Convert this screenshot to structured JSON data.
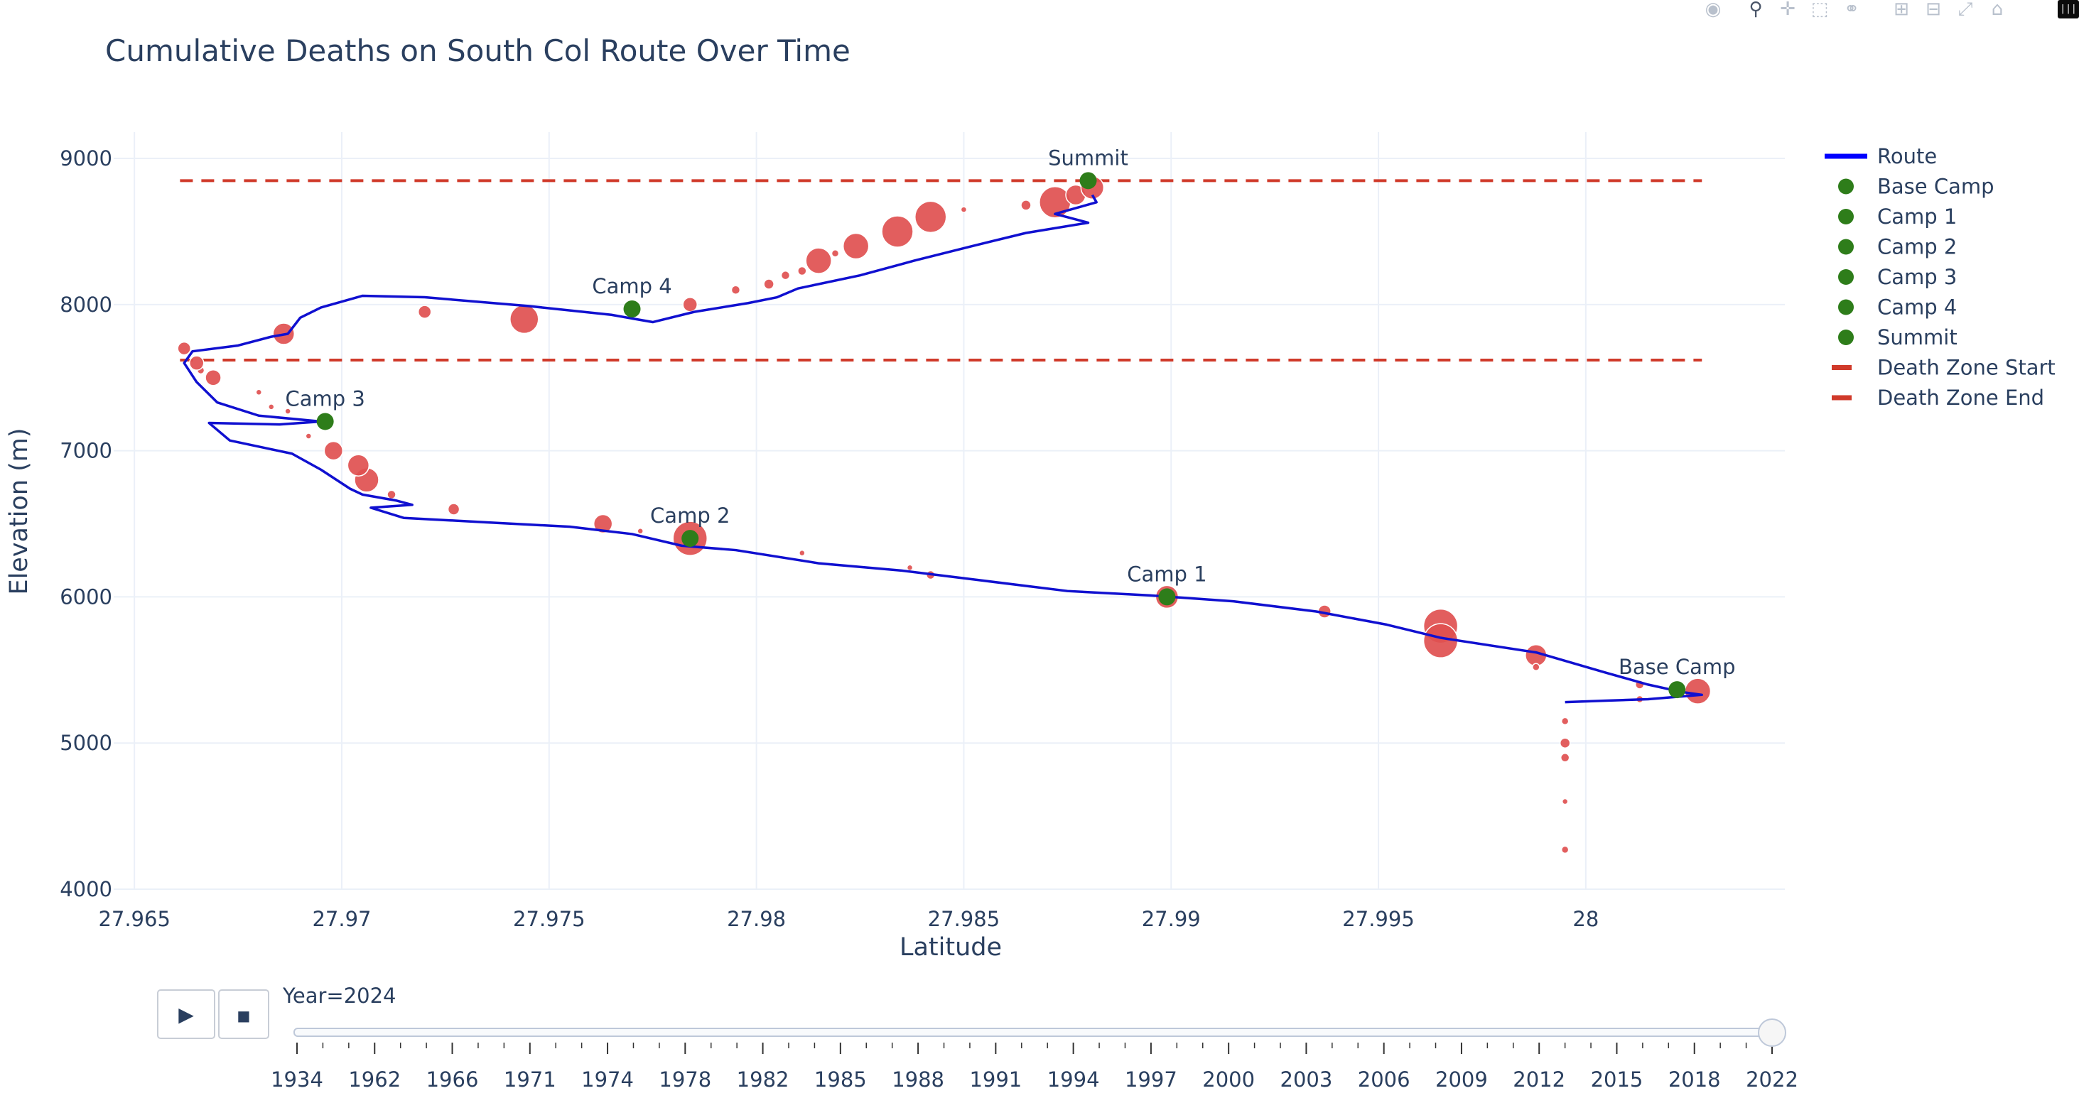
{
  "toolbar": {
    "icons": [
      "camera-icon",
      "zoom-icon",
      "pan-icon",
      "box-select-icon",
      "lasso-icon",
      "zoom-in-icon",
      "zoom-out-icon",
      "autoscale-icon",
      "reset-axes-icon",
      "plotly-logo-icon"
    ]
  },
  "chart_data": {
    "type": "scatter",
    "title": "Cumulative Deaths on South Col Route Over Time",
    "xlabel": "Latitude",
    "ylabel": "Elevation (m)",
    "xlim": [
      27.9645,
      28.0048
    ],
    "ylim": [
      4000,
      9180
    ],
    "xticks": [
      {
        "v": 27.965,
        "t": "27.965"
      },
      {
        "v": 27.97,
        "t": "27.97"
      },
      {
        "v": 27.975,
        "t": "27.975"
      },
      {
        "v": 27.98,
        "t": "27.98"
      },
      {
        "v": 27.985,
        "t": "27.985"
      },
      {
        "v": 27.99,
        "t": "27.99"
      },
      {
        "v": 27.995,
        "t": "27.995"
      },
      {
        "v": 28.0,
        "t": "28"
      }
    ],
    "yticks": [
      {
        "v": 4000,
        "t": "4000"
      },
      {
        "v": 5000,
        "t": "5000"
      },
      {
        "v": 6000,
        "t": "6000"
      },
      {
        "v": 7000,
        "t": "7000"
      },
      {
        "v": 8000,
        "t": "8000"
      },
      {
        "v": 9000,
        "t": "9000"
      }
    ],
    "grid": true,
    "legend_position": "right",
    "colors": {
      "route": "#1010d0",
      "camp": "#2e7d1a",
      "death": "#e05050",
      "zone": "#d03a2a"
    },
    "legend": [
      {
        "name": "Route",
        "kind": "line"
      },
      {
        "name": "Base Camp",
        "kind": "dot"
      },
      {
        "name": "Camp 1",
        "kind": "dot"
      },
      {
        "name": "Camp 2",
        "kind": "dot"
      },
      {
        "name": "Camp 3",
        "kind": "dot"
      },
      {
        "name": "Camp 4",
        "kind": "dot"
      },
      {
        "name": "Summit",
        "kind": "dot"
      },
      {
        "name": "Death Zone Start",
        "kind": "dash"
      },
      {
        "name": "Death Zone End",
        "kind": "dash"
      }
    ],
    "route": [
      [
        27.9995,
        5280
      ],
      [
        28.0005,
        5290
      ],
      [
        28.0015,
        5300
      ],
      [
        28.0028,
        5330
      ],
      [
        28.0023,
        5350
      ],
      [
        28.0015,
        5400
      ],
      [
        28.0005,
        5480
      ],
      [
        27.9988,
        5620
      ],
      [
        27.9965,
        5720
      ],
      [
        27.9952,
        5810
      ],
      [
        27.9935,
        5900
      ],
      [
        27.9915,
        5970
      ],
      [
        27.9895,
        6010
      ],
      [
        27.9875,
        6040
      ],
      [
        27.9855,
        6110
      ],
      [
        27.9835,
        6180
      ],
      [
        27.9815,
        6230
      ],
      [
        27.9795,
        6320
      ],
      [
        27.9782,
        6350
      ],
      [
        27.977,
        6430
      ],
      [
        27.9755,
        6480
      ],
      [
        27.9735,
        6510
      ],
      [
        27.9715,
        6540
      ],
      [
        27.9707,
        6610
      ],
      [
        27.9717,
        6630
      ],
      [
        27.9713,
        6660
      ],
      [
        27.9705,
        6700
      ],
      [
        27.9702,
        6740
      ],
      [
        27.9695,
        6870
      ],
      [
        27.9688,
        6980
      ],
      [
        27.9673,
        7070
      ],
      [
        27.9668,
        7190
      ],
      [
        27.9685,
        7180
      ],
      [
        27.9695,
        7200
      ],
      [
        27.968,
        7240
      ],
      [
        27.967,
        7330
      ],
      [
        27.9665,
        7470
      ],
      [
        27.9662,
        7600
      ],
      [
        27.9664,
        7680
      ],
      [
        27.9675,
        7720
      ],
      [
        27.9683,
        7780
      ],
      [
        27.9687,
        7800
      ],
      [
        27.969,
        7910
      ],
      [
        27.9695,
        7980
      ],
      [
        27.9705,
        8060
      ],
      [
        27.972,
        8050
      ],
      [
        27.9745,
        7990
      ],
      [
        27.9765,
        7930
      ],
      [
        27.9775,
        7880
      ],
      [
        27.9785,
        7950
      ],
      [
        27.9798,
        8010
      ],
      [
        27.9805,
        8050
      ],
      [
        27.981,
        8110
      ],
      [
        27.9825,
        8200
      ],
      [
        27.9838,
        8300
      ],
      [
        27.9852,
        8400
      ],
      [
        27.9865,
        8490
      ],
      [
        27.988,
        8560
      ],
      [
        27.9872,
        8620
      ],
      [
        27.9882,
        8700
      ],
      [
        27.9881,
        8750
      ]
    ],
    "camps": [
      {
        "name": "Base Camp",
        "x": 28.0022,
        "y": 5365
      },
      {
        "name": "Camp 1",
        "x": 27.9899,
        "y": 6000
      },
      {
        "name": "Camp 2",
        "x": 27.9784,
        "y": 6400
      },
      {
        "name": "Camp 3",
        "x": 27.9696,
        "y": 7200
      },
      {
        "name": "Camp 4",
        "x": 27.977,
        "y": 7970
      },
      {
        "name": "Summit",
        "x": 27.988,
        "y": 8848
      }
    ],
    "death_zone": [
      {
        "name": "Death Zone Start",
        "y": 7620
      },
      {
        "name": "Death Zone End",
        "y": 8848
      }
    ],
    "zone_x": [
      27.9661,
      28.0028
    ],
    "deaths": [
      {
        "x": 28.0027,
        "y": 5355,
        "r": 18
      },
      {
        "x": 27.9988,
        "y": 5600,
        "r": 15
      },
      {
        "x": 27.9988,
        "y": 5520,
        "r": 5
      },
      {
        "x": 27.9965,
        "y": 5800,
        "r": 24
      },
      {
        "x": 27.9965,
        "y": 5700,
        "r": 24
      },
      {
        "x": 27.9937,
        "y": 5900,
        "r": 9
      },
      {
        "x": 27.9899,
        "y": 6000,
        "r": 16
      },
      {
        "x": 27.9842,
        "y": 6150,
        "r": 6
      },
      {
        "x": 27.9837,
        "y": 6200,
        "r": 4
      },
      {
        "x": 27.9811,
        "y": 6300,
        "r": 4
      },
      {
        "x": 27.9784,
        "y": 6400,
        "r": 24
      },
      {
        "x": 27.9772,
        "y": 6450,
        "r": 4
      },
      {
        "x": 27.9763,
        "y": 6500,
        "r": 13
      },
      {
        "x": 27.9727,
        "y": 6600,
        "r": 8
      },
      {
        "x": 27.9712,
        "y": 6700,
        "r": 6
      },
      {
        "x": 27.9706,
        "y": 6800,
        "r": 17
      },
      {
        "x": 27.9704,
        "y": 6900,
        "r": 15
      },
      {
        "x": 27.9698,
        "y": 7000,
        "r": 13
      },
      {
        "x": 27.9692,
        "y": 7100,
        "r": 4
      },
      {
        "x": 27.9687,
        "y": 7270,
        "r": 4
      },
      {
        "x": 27.9683,
        "y": 7300,
        "r": 4
      },
      {
        "x": 27.968,
        "y": 7400,
        "r": 4
      },
      {
        "x": 27.9669,
        "y": 7500,
        "r": 11
      },
      {
        "x": 27.9666,
        "y": 7550,
        "r": 5
      },
      {
        "x": 27.9665,
        "y": 7600,
        "r": 10
      },
      {
        "x": 27.9662,
        "y": 7700,
        "r": 9
      },
      {
        "x": 27.9686,
        "y": 7800,
        "r": 15
      },
      {
        "x": 27.972,
        "y": 7950,
        "r": 9
      },
      {
        "x": 27.9744,
        "y": 7900,
        "r": 20
      },
      {
        "x": 27.9784,
        "y": 8000,
        "r": 10
      },
      {
        "x": 27.9795,
        "y": 8100,
        "r": 6
      },
      {
        "x": 27.9803,
        "y": 8140,
        "r": 7
      },
      {
        "x": 27.9807,
        "y": 8200,
        "r": 6
      },
      {
        "x": 27.9811,
        "y": 8230,
        "r": 6
      },
      {
        "x": 27.9815,
        "y": 8300,
        "r": 18
      },
      {
        "x": 27.9819,
        "y": 8350,
        "r": 5
      },
      {
        "x": 27.9824,
        "y": 8400,
        "r": 18
      },
      {
        "x": 27.9834,
        "y": 8500,
        "r": 22
      },
      {
        "x": 27.9842,
        "y": 8600,
        "r": 22
      },
      {
        "x": 27.985,
        "y": 8650,
        "r": 4
      },
      {
        "x": 27.9865,
        "y": 8680,
        "r": 7
      },
      {
        "x": 27.9872,
        "y": 8700,
        "r": 22
      },
      {
        "x": 27.9877,
        "y": 8750,
        "r": 14
      },
      {
        "x": 27.9881,
        "y": 8800,
        "r": 16
      },
      {
        "x": 27.9995,
        "y": 5150,
        "r": 5
      },
      {
        "x": 27.9995,
        "y": 5000,
        "r": 7
      },
      {
        "x": 27.9995,
        "y": 4900,
        "r": 6
      },
      {
        "x": 27.9995,
        "y": 4600,
        "r": 4
      },
      {
        "x": 27.9995,
        "y": 4270,
        "r": 5
      },
      {
        "x": 28.0013,
        "y": 5400,
        "r": 6
      },
      {
        "x": 28.0013,
        "y": 5300,
        "r": 5
      }
    ]
  },
  "slider": {
    "current_label": "Year=2024",
    "play_label": "▶",
    "stop_label": "■",
    "value_fraction": 1.0,
    "ticks": [
      "1934",
      "1962",
      "1966",
      "1971",
      "1974",
      "1978",
      "1982",
      "1985",
      "1988",
      "1991",
      "1994",
      "1997",
      "2000",
      "2003",
      "2006",
      "2009",
      "2012",
      "2015",
      "2018",
      "2022"
    ]
  }
}
